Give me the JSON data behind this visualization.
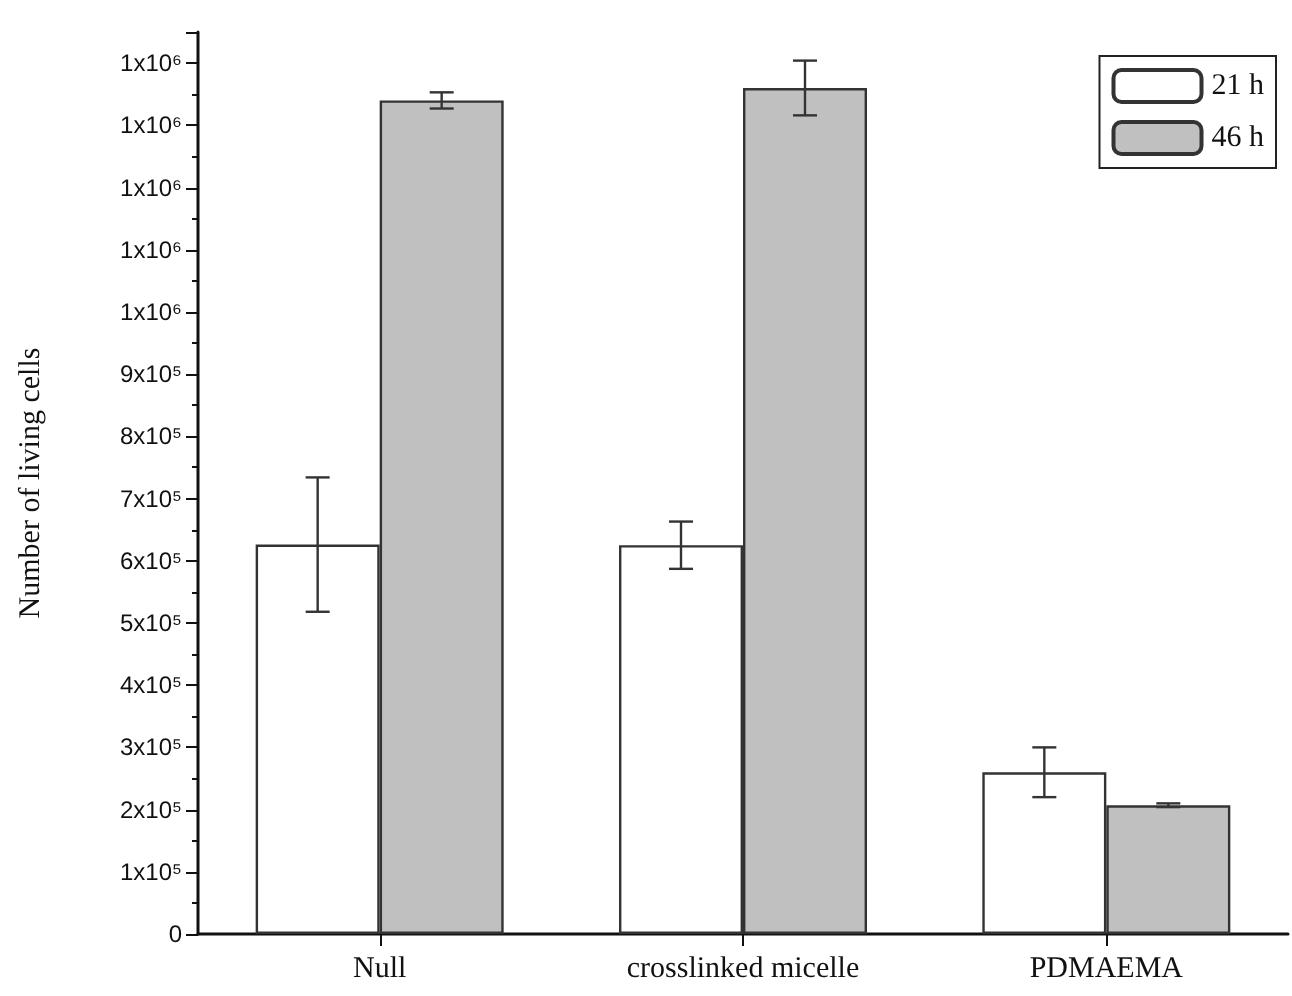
{
  "chart_data": {
    "type": "bar",
    "ylabel": "Number of living cells",
    "categories": [
      "Null",
      "crosslinked micelle",
      "PDMAEMA"
    ],
    "series": [
      {
        "name": "21 h",
        "color": "#ffffff",
        "values": [
          626000,
          625000,
          260000
        ],
        "errors": [
          108000,
          38000,
          40000
        ]
      },
      {
        "name": "46 h",
        "color": "#c0c0c0",
        "values": [
          1340000,
          1360000,
          207000
        ],
        "errors": [
          13000,
          44000,
          3000
        ]
      }
    ],
    "ylim": [
      0,
      1450000
    ],
    "yticks": [
      0,
      {
        "value": 100000,
        "label": "1x10⁵"
      },
      {
        "value": 200000,
        "label": "2x10⁵"
      },
      {
        "value": 300000,
        "label": "3x10⁵"
      },
      {
        "value": 400000,
        "label": "4x10⁵"
      },
      {
        "value": 500000,
        "label": "5x10⁵"
      },
      {
        "value": 600000,
        "label": "6x10⁵"
      },
      {
        "value": 700000,
        "label": "7x10⁵"
      },
      {
        "value": 800000,
        "label": "8x10⁵"
      },
      {
        "value": 900000,
        "label": "9x10⁵"
      },
      {
        "value": 1000000,
        "label": "1x10⁶"
      },
      {
        "value": 1100000,
        "label": "1x10⁶"
      },
      {
        "value": 1200000,
        "label": "1x10⁶"
      },
      {
        "value": 1300000,
        "label": "1x10⁶"
      },
      {
        "value": 1400000,
        "label": "1x10⁶"
      }
    ],
    "grid": false,
    "legend": "top right"
  }
}
